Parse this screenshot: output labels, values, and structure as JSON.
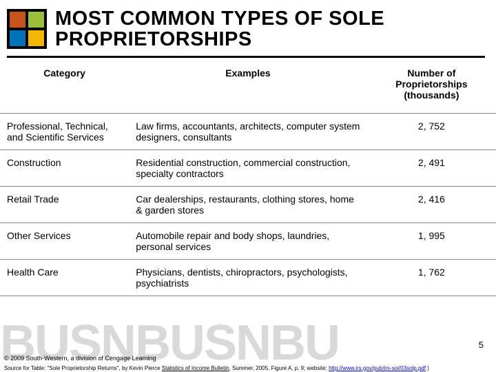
{
  "title": "MOST COMMON TYPES OF SOLE PROPRIETORSHIPS",
  "logo_colors": [
    "#c8531c",
    "#9bbf3a",
    "#0072b8",
    "#f2b705"
  ],
  "table": {
    "columns": [
      "Category",
      "Examples",
      "Number of Proprietorships (thousands)"
    ],
    "rows": [
      {
        "category": "Professional, Technical, and Scientific Services",
        "examples": "Law firms, accountants, architects, computer system designers, consultants",
        "number": "2, 752"
      },
      {
        "category": "Construction",
        "examples": "Residential construction, commercial construction, specialty contractors",
        "number": "2, 491"
      },
      {
        "category": "Retail Trade",
        "examples": "Car dealerships, restaurants, clothing stores, home & garden stores",
        "number": "2, 416"
      },
      {
        "category": "Other Services",
        "examples": "Automobile repair and body shops, laundries, personal services",
        "number": "1, 995"
      },
      {
        "category": "Health Care",
        "examples": "Physicians, dentists, chiropractors, psychologists, psychiatrists",
        "number": "1, 762"
      }
    ]
  },
  "watermark": "BUSNBUSNBU",
  "page_number": "5",
  "copyright": "© 2009 South-Western, a division of Cengage Learning",
  "source_prefix": "Source for Table: \"Sole Proprietorship Returns\", by Kevin Pierce ",
  "source_underlined": "Statistics of Income Bulletin",
  "source_mid": ", Summer, 2005, Figure A, p. 9; website: ",
  "source_link": "http://www.irs.gov/pub/irs-soi/03solp.pdf",
  "source_suffix": " )"
}
